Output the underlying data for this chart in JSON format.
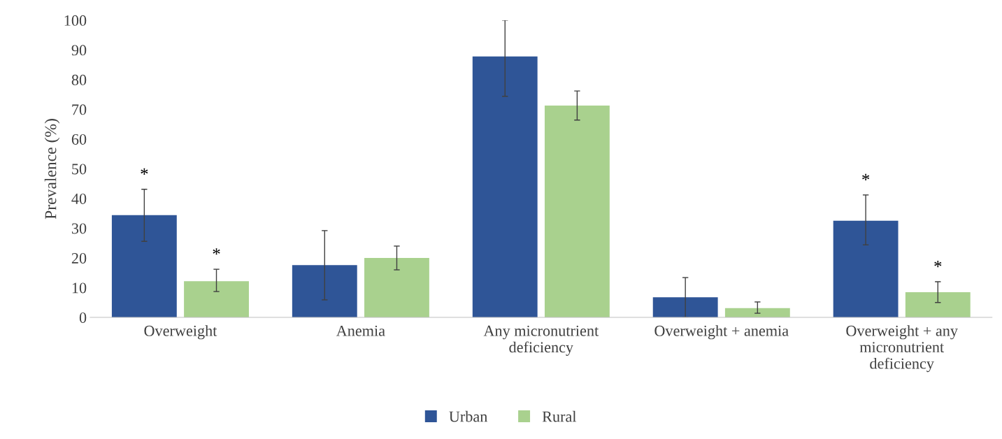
{
  "chart_data": {
    "type": "bar",
    "ylabel": "Prevalence (%)",
    "categories": [
      "Overweight",
      "Anemia",
      "Any micronutrient\ndeficiency",
      "Overweight + anemia",
      "Overweight + any\nmicronutrient\ndeficiency"
    ],
    "series": [
      {
        "name": "Urban",
        "color": "#2f5597",
        "values": [
          34.4,
          17.6,
          87.8,
          6.8,
          32.5
        ],
        "errors": [
          [
            25.6,
            43.1
          ],
          [
            5.9,
            29.2
          ],
          [
            74.4,
            100
          ],
          [
            0,
            13.4
          ],
          [
            24.4,
            41.2
          ]
        ],
        "value_labels": [
          "*",
          null,
          null,
          null,
          "*"
        ]
      },
      {
        "name": "Rural",
        "color": "#a9d18e",
        "values": [
          12.2,
          20.0,
          71.3,
          3.1,
          8.5
        ],
        "errors": [
          [
            8.7,
            16.2
          ],
          [
            16.0,
            24.0
          ],
          [
            66.4,
            76.2
          ],
          [
            1.4,
            5.2
          ],
          [
            5.0,
            12.0
          ]
        ],
        "value_labels": [
          "*",
          null,
          null,
          null,
          "*"
        ]
      }
    ],
    "ylim": [
      0,
      100
    ],
    "yticks": [
      0,
      10,
      20,
      30,
      40,
      50,
      60,
      70,
      80,
      90,
      100
    ],
    "grid": false,
    "legend": "bottom"
  }
}
